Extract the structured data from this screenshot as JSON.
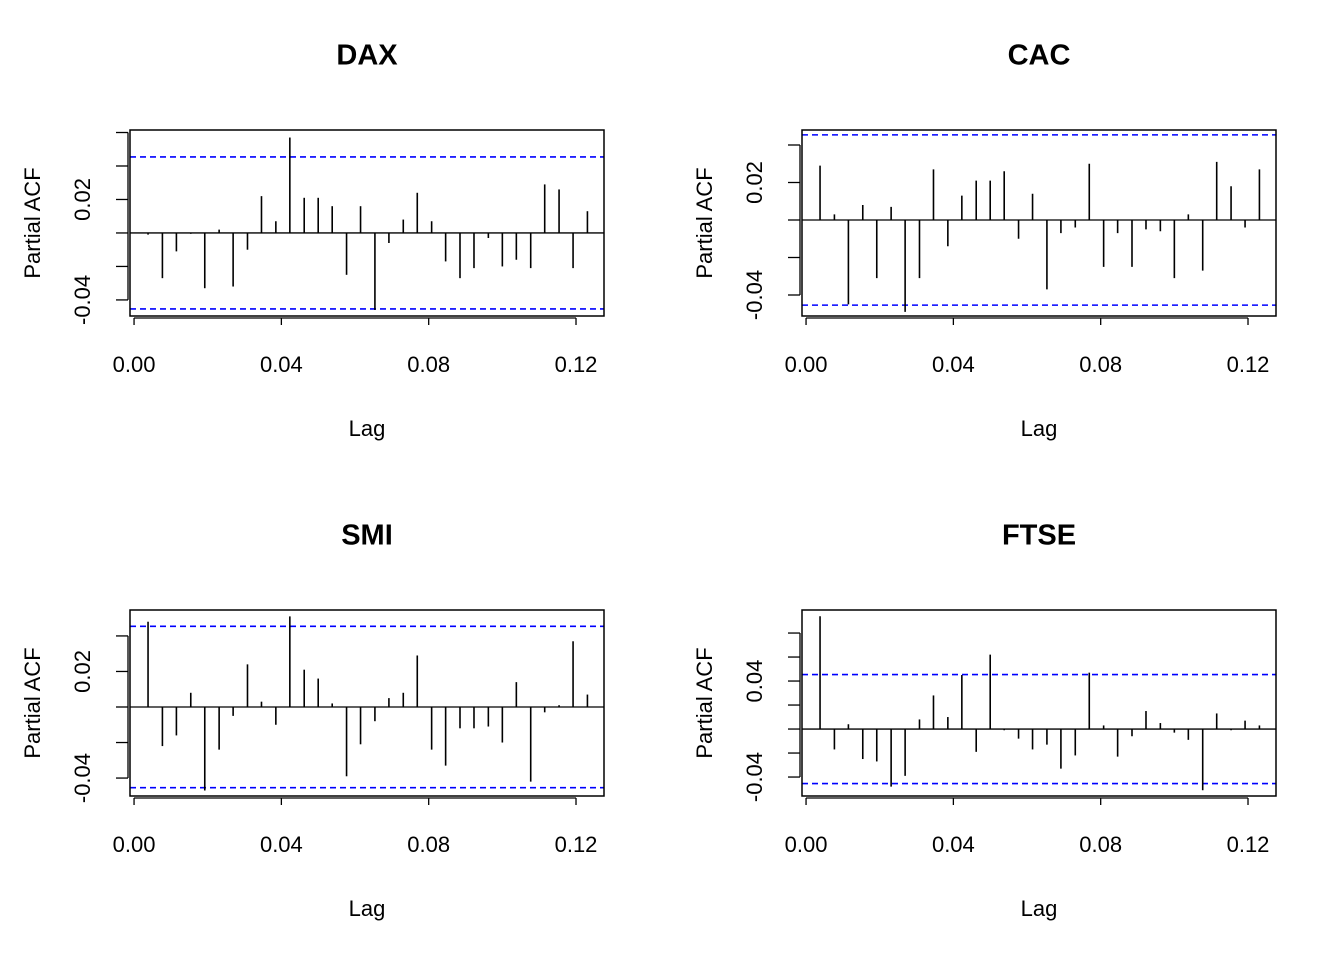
{
  "chart_data": [
    {
      "type": "spike",
      "title": "DAX",
      "xlabel": "Lag",
      "ylabel": "Partial ACF",
      "color": "#000000",
      "band_color": "#0000ff",
      "x": [
        0.0038,
        0.0077,
        0.0115,
        0.0154,
        0.0192,
        0.0231,
        0.0269,
        0.0308,
        0.0346,
        0.0385,
        0.0423,
        0.0462,
        0.05,
        0.0538,
        0.0577,
        0.0615,
        0.0654,
        0.0692,
        0.0731,
        0.0769,
        0.0808,
        0.0846,
        0.0885,
        0.0923,
        0.0962,
        0.1,
        0.1038,
        0.1077,
        0.1115,
        0.1154,
        0.1192,
        0.1231
      ],
      "values": [
        -0.001,
        -0.027,
        -0.011,
        -0.0005,
        -0.033,
        0.002,
        -0.032,
        -0.01,
        0.022,
        0.007,
        0.057,
        0.021,
        0.021,
        0.016,
        -0.025,
        0.016,
        -0.046,
        -0.006,
        0.008,
        0.024,
        0.007,
        -0.017,
        -0.027,
        -0.021,
        -0.003,
        -0.02,
        -0.016,
        -0.021,
        0.029,
        0.026,
        -0.021,
        0.013
      ],
      "conf_limits": [
        -0.0454,
        0.0454
      ],
      "xlim": [
        -0.0011,
        0.1276
      ],
      "xticks": [
        {
          "value": 0,
          "label": "0.00"
        },
        0.04,
        0.08,
        0.12
      ],
      "ylim": [
        -0.0496,
        0.0615
      ],
      "yticks": [
        -0.04,
        0.02
      ],
      "ytick_marks": [
        -0.04,
        -0.02,
        0,
        0.02,
        0.04,
        0.06
      ]
    },
    {
      "type": "spike",
      "title": "CAC",
      "xlabel": "Lag",
      "ylabel": "Partial ACF",
      "color": "#000000",
      "band_color": "#0000ff",
      "x": [
        0.0038,
        0.0077,
        0.0115,
        0.0154,
        0.0192,
        0.0231,
        0.0269,
        0.0308,
        0.0346,
        0.0385,
        0.0423,
        0.0462,
        0.05,
        0.0538,
        0.0577,
        0.0615,
        0.0654,
        0.0692,
        0.0731,
        0.0769,
        0.0808,
        0.0846,
        0.0885,
        0.0923,
        0.0962,
        0.1,
        0.1038,
        0.1077,
        0.1115,
        0.1154,
        0.1192,
        0.1231
      ],
      "values": [
        0.029,
        0.003,
        -0.045,
        0.008,
        -0.031,
        0.007,
        -0.049,
        -0.031,
        0.027,
        -0.014,
        0.013,
        0.021,
        0.021,
        0.026,
        -0.01,
        0.014,
        -0.037,
        -0.007,
        -0.004,
        0.03,
        -0.025,
        -0.007,
        -0.025,
        -0.005,
        -0.006,
        -0.031,
        0.003,
        -0.027,
        0.031,
        0.018,
        -0.004,
        0.027
      ],
      "conf_limits": [
        -0.0454,
        0.0454
      ],
      "xlim": [
        -0.0011,
        0.1276
      ],
      "xticks": [
        {
          "value": 0,
          "label": "0.00"
        },
        0.04,
        0.08,
        0.12
      ],
      "ylim": [
        -0.0512,
        0.048
      ],
      "yticks": [
        -0.04,
        0.02
      ],
      "ytick_marks": [
        -0.04,
        -0.02,
        0,
        0.02,
        0.04
      ]
    },
    {
      "type": "spike",
      "title": "SMI",
      "xlabel": "Lag",
      "ylabel": "Partial ACF",
      "color": "#000000",
      "band_color": "#0000ff",
      "x": [
        0.0038,
        0.0077,
        0.0115,
        0.0154,
        0.0192,
        0.0231,
        0.0269,
        0.0308,
        0.0346,
        0.0385,
        0.0423,
        0.0462,
        0.05,
        0.0538,
        0.0577,
        0.0615,
        0.0654,
        0.0692,
        0.0731,
        0.0769,
        0.0808,
        0.0846,
        0.0885,
        0.0923,
        0.0962,
        0.1,
        0.1038,
        0.1077,
        0.1115,
        0.1154,
        0.1192,
        0.1231
      ],
      "values": [
        0.048,
        -0.022,
        -0.016,
        0.008,
        -0.047,
        -0.024,
        -0.005,
        0.024,
        0.003,
        -0.01,
        0.051,
        0.021,
        0.016,
        0.002,
        -0.039,
        -0.021,
        -0.008,
        0.005,
        0.008,
        0.029,
        -0.024,
        -0.033,
        -0.012,
        -0.012,
        -0.011,
        -0.02,
        0.014,
        -0.042,
        -0.003,
        0.001,
        0.037,
        0.007
      ],
      "conf_limits": [
        -0.0454,
        0.0454
      ],
      "xlim": [
        -0.0011,
        0.1276
      ],
      "xticks": [
        {
          "value": 0,
          "label": "0.00"
        },
        0.04,
        0.08,
        0.12
      ],
      "ylim": [
        -0.0501,
        0.0546
      ],
      "yticks": [
        -0.04,
        0.02
      ],
      "ytick_marks": [
        -0.04,
        -0.02,
        0,
        0.02,
        0.04
      ]
    },
    {
      "type": "spike",
      "title": "FTSE",
      "xlabel": "Lag",
      "ylabel": "Partial ACF",
      "color": "#000000",
      "band_color": "#0000ff",
      "x": [
        0.0038,
        0.0077,
        0.0115,
        0.0154,
        0.0192,
        0.0231,
        0.0269,
        0.0308,
        0.0346,
        0.0385,
        0.0423,
        0.0462,
        0.05,
        0.0538,
        0.0577,
        0.0615,
        0.0654,
        0.0692,
        0.0731,
        0.0769,
        0.0808,
        0.0846,
        0.0885,
        0.0923,
        0.0962,
        0.1,
        0.1038,
        0.1077,
        0.1115,
        0.1154,
        0.1192,
        0.1231
      ],
      "values": [
        0.094,
        -0.017,
        0.004,
        -0.025,
        -0.027,
        -0.048,
        -0.039,
        0.008,
        0.028,
        0.01,
        0.045,
        -0.019,
        0.062,
        -0.001,
        -0.008,
        -0.017,
        -0.013,
        -0.033,
        -0.022,
        0.047,
        0.003,
        -0.023,
        -0.006,
        0.015,
        0.005,
        -0.003,
        -0.009,
        -0.051,
        0.013,
        -0.001,
        0.007,
        0.003
      ],
      "conf_limits": [
        -0.0454,
        0.0454
      ],
      "xlim": [
        -0.0011,
        0.1276
      ],
      "xticks": [
        {
          "value": 0,
          "label": "0.00"
        },
        0.04,
        0.08,
        0.12
      ],
      "ylim": [
        -0.0558,
        0.0992
      ],
      "yticks": [
        -0.04,
        0.04
      ],
      "ytick_marks": [
        -0.04,
        -0.02,
        0,
        0.02,
        0.04,
        0.06,
        0.08
      ]
    }
  ]
}
